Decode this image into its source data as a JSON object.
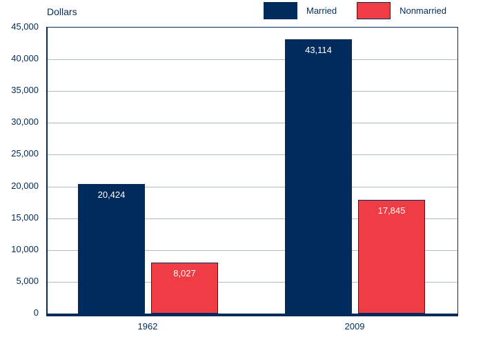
{
  "title_label": "Dollars",
  "chart_data": {
    "type": "bar",
    "title": "",
    "ylabel": "Dollars",
    "xlabel": "",
    "categories": [
      "1962",
      "2009"
    ],
    "series": [
      {
        "name": "Married",
        "color": "#002b5c",
        "border_color": "#002b5c",
        "values": [
          20424,
          43114
        ]
      },
      {
        "name": "Nonmarried",
        "color": "#ee3d44",
        "border_color": "#002b5c",
        "values": [
          8027,
          17845
        ]
      }
    ],
    "value_labels": [
      [
        "20,424",
        "43,114"
      ],
      [
        "8,027",
        "17,845"
      ]
    ],
    "ylim": [
      0,
      45000
    ],
    "ytick_step": 5000,
    "grid": true,
    "legend_position": "top-right",
    "bar_value_labels_inside_top": true
  },
  "y_axis": {
    "tick_labels": [
      "45,000",
      "40,000",
      "35,000",
      "30,000",
      "25,000",
      "20,000",
      "15,000",
      "10,000",
      "5,000",
      "0"
    ]
  },
  "x_axis": {
    "tick_labels": [
      "1962",
      "2009"
    ]
  },
  "legend": {
    "items": [
      {
        "label": "Married",
        "color": "#002b5c"
      },
      {
        "label": "Nonmarried",
        "color": "#ee3d44"
      }
    ]
  },
  "colors": {
    "navy": "#002b5c",
    "red": "#ee3d44",
    "gridline": "#a9bcca",
    "text": "#002b5c",
    "value_label": "#ffffff",
    "background": "#ffffff"
  }
}
